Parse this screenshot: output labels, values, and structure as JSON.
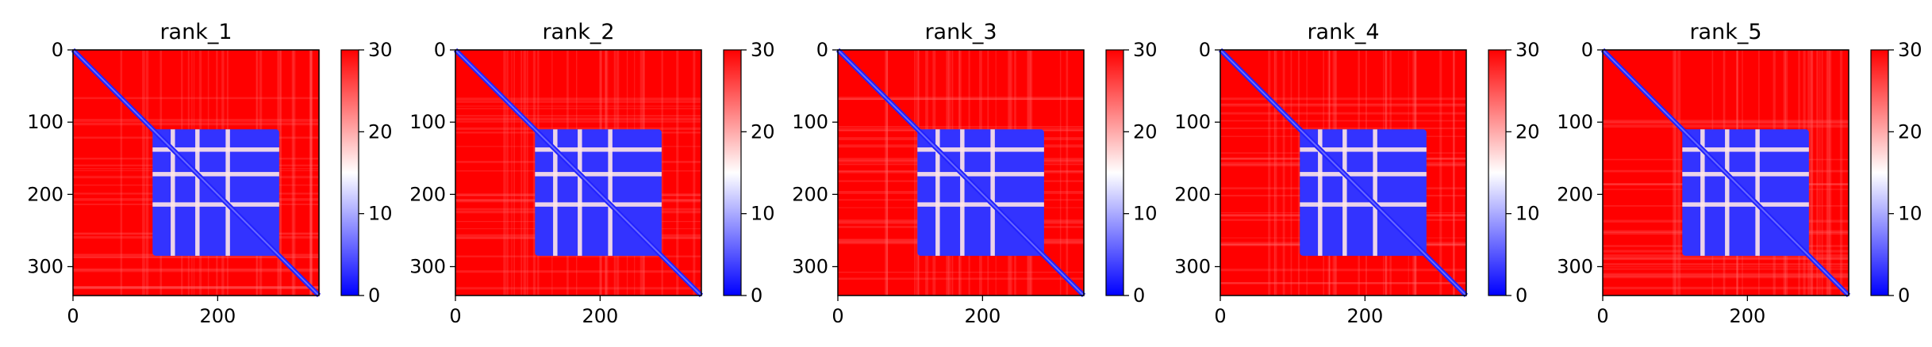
{
  "figure": {
    "colormap": {
      "name": "bwr",
      "min_color": "#0000ff",
      "mid_color": "#ffffff",
      "max_color": "#ff0000"
    }
  },
  "chart_data": [
    {
      "type": "heatmap",
      "title": "rank_1",
      "x_ticks": [
        0,
        200
      ],
      "y_ticks": [
        0,
        100,
        200,
        300
      ],
      "xlim": [
        0,
        340
      ],
      "ylim": [
        340,
        0
      ],
      "colorbar": {
        "ticks": [
          0,
          10,
          20,
          30
        ],
        "range": [
          0,
          30
        ]
      },
      "pattern": {
        "matrix_size": 340,
        "domain_start": 110,
        "domain_end": 285,
        "in_domain_value": 3,
        "background_value": 30,
        "diagonal_value": 2,
        "gap_bands": [
          138,
          172,
          214
        ]
      }
    },
    {
      "type": "heatmap",
      "title": "rank_2",
      "x_ticks": [
        0,
        200
      ],
      "y_ticks": [
        0,
        100,
        200,
        300
      ],
      "xlim": [
        0,
        340
      ],
      "ylim": [
        340,
        0
      ],
      "colorbar": {
        "ticks": [
          0,
          10,
          20,
          30
        ],
        "range": [
          0,
          30
        ]
      },
      "pattern": {
        "matrix_size": 340,
        "domain_start": 110,
        "domain_end": 285,
        "in_domain_value": 3,
        "background_value": 30,
        "diagonal_value": 2,
        "gap_bands": [
          138,
          172,
          214
        ]
      }
    },
    {
      "type": "heatmap",
      "title": "rank_3",
      "x_ticks": [
        0,
        200
      ],
      "y_ticks": [
        0,
        100,
        200,
        300
      ],
      "xlim": [
        0,
        340
      ],
      "ylim": [
        340,
        0
      ],
      "colorbar": {
        "ticks": [
          0,
          10,
          20,
          30
        ],
        "range": [
          0,
          30
        ]
      },
      "pattern": {
        "matrix_size": 340,
        "domain_start": 110,
        "domain_end": 285,
        "in_domain_value": 3,
        "background_value": 30,
        "diagonal_value": 2,
        "gap_bands": [
          138,
          172,
          214
        ]
      }
    },
    {
      "type": "heatmap",
      "title": "rank_4",
      "x_ticks": [
        0,
        200
      ],
      "y_ticks": [
        0,
        100,
        200,
        300
      ],
      "xlim": [
        0,
        340
      ],
      "ylim": [
        340,
        0
      ],
      "colorbar": {
        "ticks": [
          0,
          10,
          20,
          30
        ],
        "range": [
          0,
          30
        ]
      },
      "pattern": {
        "matrix_size": 340,
        "domain_start": 110,
        "domain_end": 285,
        "in_domain_value": 3,
        "background_value": 30,
        "diagonal_value": 2,
        "gap_bands": [
          138,
          172,
          214
        ]
      }
    },
    {
      "type": "heatmap",
      "title": "rank_5",
      "x_ticks": [
        0,
        200
      ],
      "y_ticks": [
        0,
        100,
        200,
        300
      ],
      "xlim": [
        0,
        340
      ],
      "ylim": [
        340,
        0
      ],
      "colorbar": {
        "ticks": [
          0,
          10,
          20,
          30
        ],
        "range": [
          0,
          30
        ]
      },
      "pattern": {
        "matrix_size": 340,
        "domain_start": 110,
        "domain_end": 285,
        "in_domain_value": 3,
        "background_value": 30,
        "diagonal_value": 2,
        "gap_bands": [
          138,
          172,
          214
        ]
      }
    }
  ]
}
